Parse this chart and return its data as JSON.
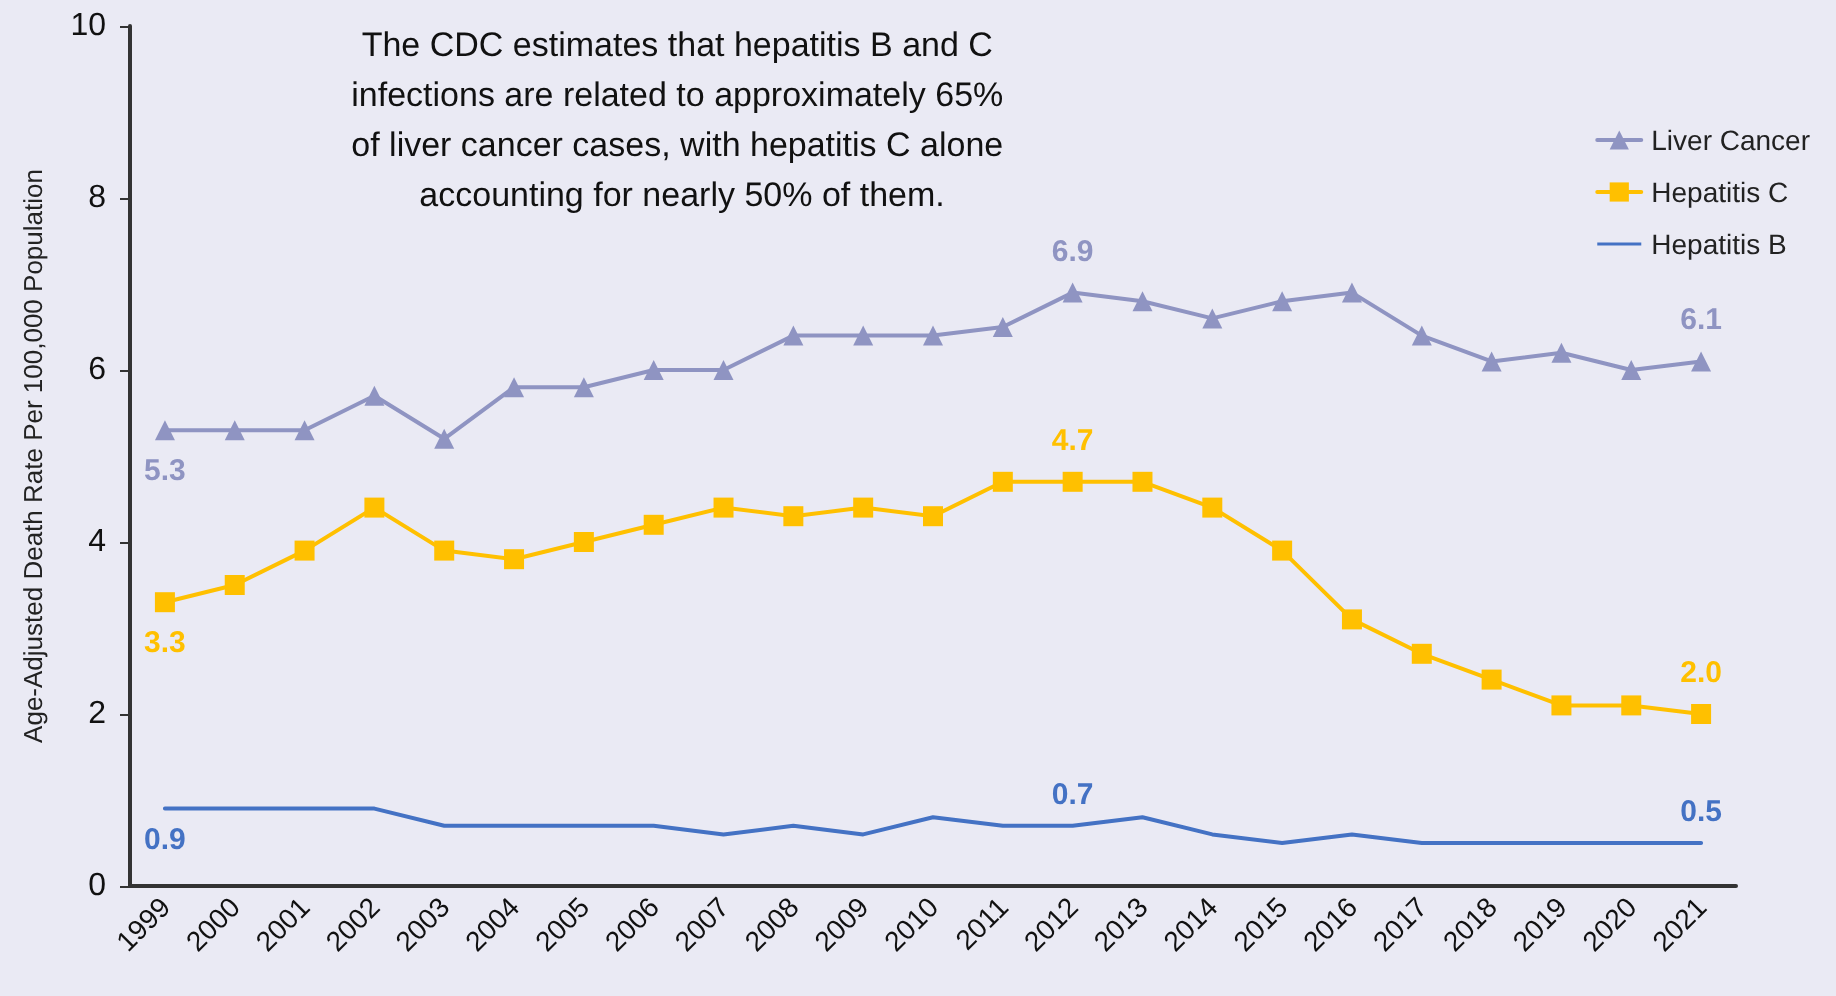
{
  "chart_data": {
    "type": "line",
    "ylabel": "Age-Adjusted Death Rate Per 100,000 Population",
    "annotations": [
      "The CDC estimates that hepatitis B and C infections are related to approximately 65% of liver cancer cases, with hepatitis C alone accounting for nearly 50% of them."
    ],
    "categories": [
      "1999",
      "2000",
      "2001",
      "2002",
      "2003",
      "2004",
      "2005",
      "2006",
      "2007",
      "2008",
      "2009",
      "2010",
      "2011",
      "2012",
      "2013",
      "2014",
      "2015",
      "2016",
      "2017",
      "2018",
      "2019",
      "2020",
      "2021"
    ],
    "series": [
      {
        "name": "Liver Cancer",
        "color": "#8f94c2",
        "marker": "triangle",
        "values": [
          5.3,
          5.3,
          5.3,
          5.7,
          5.2,
          5.8,
          5.8,
          6.0,
          6.0,
          6.4,
          6.4,
          6.4,
          6.5,
          6.9,
          6.8,
          6.6,
          6.8,
          6.9,
          6.4,
          6.1,
          6.2,
          6.0,
          6.1
        ],
        "value_labels": [
          "5.3",
          null,
          null,
          null,
          null,
          null,
          null,
          null,
          null,
          null,
          null,
          null,
          null,
          "6.9",
          null,
          null,
          null,
          null,
          null,
          null,
          null,
          null,
          "6.1"
        ]
      },
      {
        "name": "Hepatitis C",
        "color": "#ffc000",
        "marker": "square",
        "values": [
          3.3,
          3.5,
          3.9,
          4.4,
          3.9,
          3.8,
          4.0,
          4.2,
          4.4,
          4.3,
          4.4,
          4.3,
          4.7,
          4.7,
          4.7,
          4.4,
          3.9,
          3.1,
          2.7,
          2.4,
          2.1,
          2.1,
          2.0
        ],
        "value_labels": [
          "3.3",
          null,
          null,
          null,
          null,
          null,
          null,
          null,
          null,
          null,
          null,
          null,
          null,
          "4.7",
          null,
          null,
          null,
          null,
          null,
          null,
          null,
          null,
          "2.0"
        ]
      },
      {
        "name": "Hepatitis B",
        "color": "#4472c4",
        "marker": "none",
        "values": [
          0.9,
          0.9,
          0.9,
          0.9,
          0.7,
          0.7,
          0.7,
          0.7,
          0.6,
          0.7,
          0.6,
          0.8,
          0.7,
          0.7,
          0.8,
          0.6,
          0.5,
          0.6,
          0.5,
          0.5,
          0.5,
          0.5,
          0.5
        ],
        "value_labels": [
          "0.9",
          null,
          null,
          null,
          null,
          null,
          null,
          null,
          null,
          null,
          null,
          null,
          null,
          "0.7",
          null,
          null,
          null,
          null,
          null,
          null,
          null,
          null,
          "0.5"
        ]
      }
    ],
    "ylim": [
      0,
      10
    ],
    "yticks": [
      0,
      2,
      4,
      6,
      8,
      10
    ],
    "grid": false,
    "legend": "top right"
  }
}
